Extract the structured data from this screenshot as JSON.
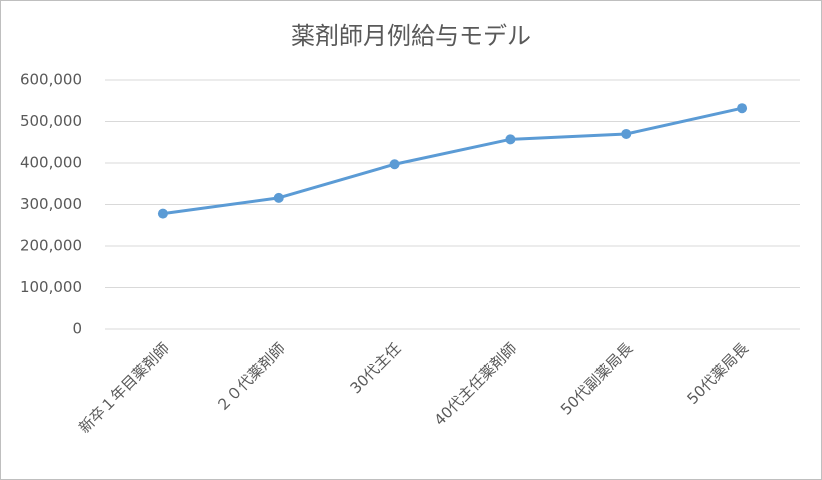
{
  "chart_data": {
    "type": "line",
    "title": "薬剤師月例給与モデル",
    "categories": [
      "新卒１年目薬剤師",
      "２０代薬剤師",
      "30代主任",
      "40代主任薬剤師",
      "50代副薬局長",
      "50代薬局長"
    ],
    "values": [
      278000,
      316000,
      397000,
      457000,
      470000,
      532000
    ],
    "color": "#5b9bd5",
    "ylim": [
      0,
      600000
    ],
    "yticks": [
      0,
      {
        "value": 100000,
        "label": "100,000"
      },
      {
        "value": 200000,
        "label": "200,000"
      },
      {
        "value": 300000,
        "label": "300,000"
      },
      {
        "value": 400000,
        "label": "400,000"
      },
      {
        "value": 500000,
        "label": "500,000"
      },
      {
        "value": 600000,
        "label": "600,000"
      }
    ],
    "grid": true
  }
}
